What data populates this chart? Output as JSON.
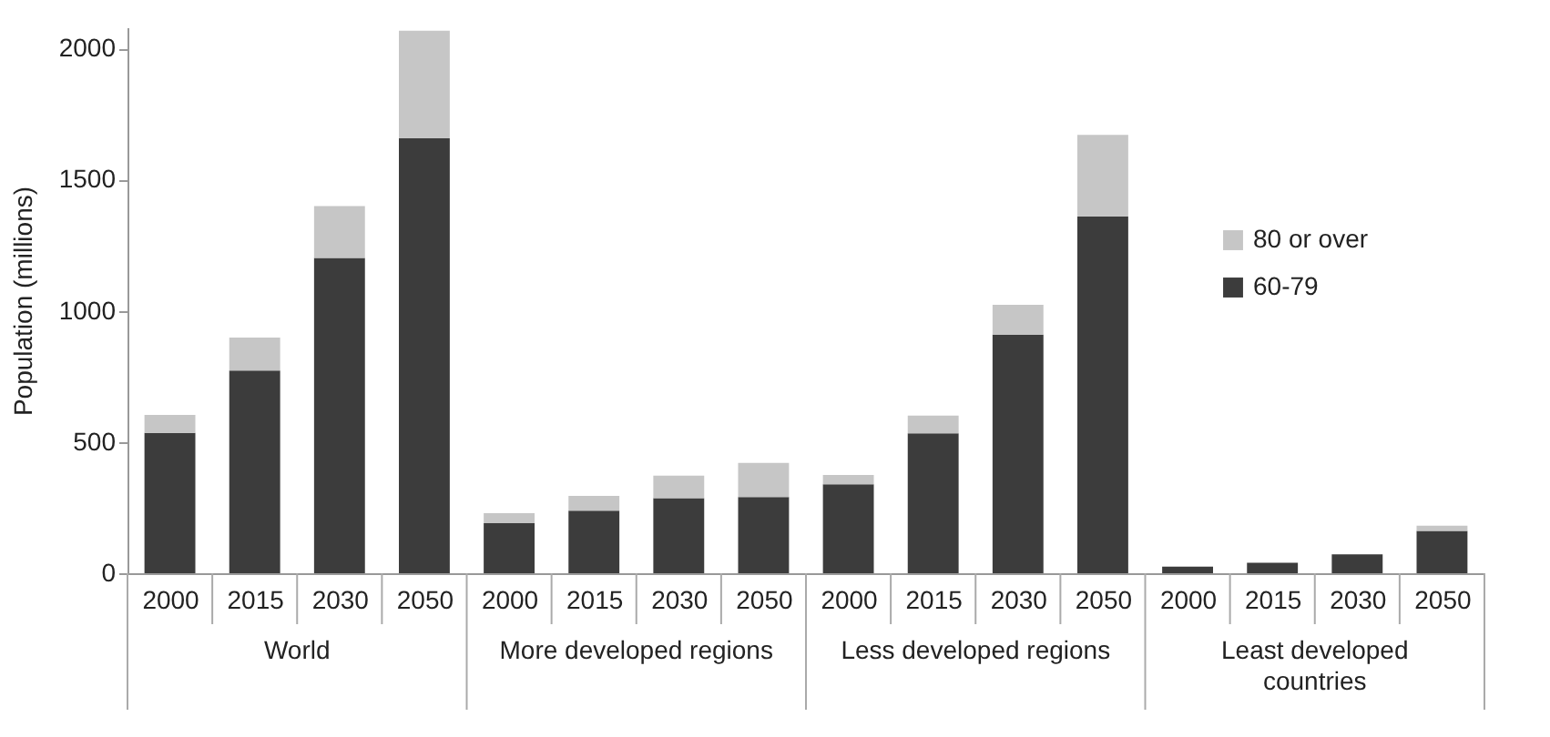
{
  "chart_data": {
    "type": "bar",
    "stacked": true,
    "ylabel": "Population (millions)",
    "categories": [
      "2000",
      "2015",
      "2030",
      "2050",
      "2000",
      "2015",
      "2030",
      "2050",
      "2000",
      "2015",
      "2030",
      "2050",
      "2000",
      "2015",
      "2030",
      "2050"
    ],
    "series": [
      {
        "name": "60-79",
        "color": "#3c3c3c",
        "values": [
          535,
          772,
          1201,
          1657,
          191,
          238,
          286,
          290,
          339,
          533,
          909,
          1360,
          25,
          40,
          72,
          161
        ]
      },
      {
        "name": "80 or over",
        "color": "#c6c6c6",
        "values": [
          68,
          126,
          198,
          410,
          38,
          57,
          86,
          130,
          35,
          68,
          114,
          310,
          null,
          null,
          null,
          20
        ]
      }
    ],
    "annotations": [
      "World",
      "More developed regions",
      "Less developed regions",
      "Least developed countries"
    ],
    "ylim": [
      0,
      2080
    ],
    "yticks": [
      0,
      500,
      1000,
      1500,
      2000
    ],
    "grid": false,
    "legend": "right"
  }
}
